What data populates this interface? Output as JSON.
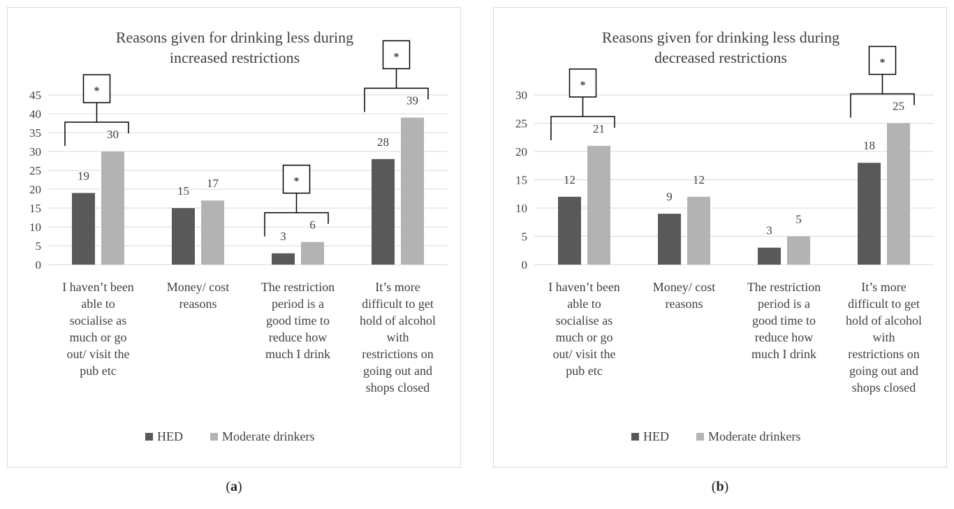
{
  "chart_data": [
    {
      "type": "bar",
      "title": "Reasons given for drinking less during increased restrictions",
      "title_lines": [
        "Reasons given for drinking less during",
        "increased restrictions"
      ],
      "categories": [
        "I haven’t been able to socialise as much or go out/ visit the pub etc",
        "Money/ cost reasons",
        "The restriction period is a good time to reduce how much I drink",
        "It’s more difficult to get hold of alcohol with restrictions on going out and shops closed"
      ],
      "category_lines": [
        [
          "I haven’t been",
          "able to",
          "socialise as",
          "much or go",
          "out/ visit the",
          "pub etc"
        ],
        [
          "Money/ cost",
          "reasons"
        ],
        [
          "The restriction",
          "period is a",
          "good time to",
          "reduce how",
          "much I drink"
        ],
        [
          "It’s more",
          "difficult to get",
          "hold of alcohol",
          "with",
          "restrictions on",
          "going out and",
          "shops closed"
        ]
      ],
      "series": [
        {
          "name": "HED",
          "values": [
            19,
            15,
            3,
            28
          ]
        },
        {
          "name": "Moderate drinkers",
          "values": [
            30,
            17,
            6,
            39
          ]
        }
      ],
      "ylim": [
        0,
        45
      ],
      "yticks": [
        0,
        5,
        10,
        15,
        20,
        25,
        30,
        35,
        40,
        45
      ],
      "grid": true,
      "legend": "bottom",
      "significance_marker": "*",
      "significant_categories": [
        0,
        2,
        3
      ],
      "colors": {
        "HED": "#595959",
        "Moderate drinkers": "#b3b3b3"
      }
    },
    {
      "type": "bar",
      "title": "Reasons given for drinking less during decreased restrictions",
      "title_lines": [
        "Reasons given for drinking less during",
        "decreased restrictions"
      ],
      "categories": [
        "I haven’t been able to socialise as much or go out/ visit the pub etc",
        "Money/ cost reasons",
        "The restriction period is a good time to reduce how much I drink",
        "It’s more difficult to get hold of alcohol with restrictions on going out and shops closed"
      ],
      "category_lines": [
        [
          "I haven’t been",
          "able to",
          "socialise as",
          "much or go",
          "out/ visit the",
          "pub etc"
        ],
        [
          "Money/ cost",
          "reasons"
        ],
        [
          "The restriction",
          "period is a",
          "good time to",
          "reduce how",
          "much I drink"
        ],
        [
          "It’s more",
          "difficult to get",
          "hold of alcohol",
          "with",
          "restrictions on",
          "going out and",
          "shops closed"
        ]
      ],
      "series": [
        {
          "name": "HED",
          "values": [
            12,
            9,
            3,
            18
          ]
        },
        {
          "name": "Moderate drinkers",
          "values": [
            21,
            12,
            5,
            25
          ]
        }
      ],
      "ylim": [
        0,
        30
      ],
      "yticks": [
        0,
        5,
        10,
        15,
        20,
        25,
        30
      ],
      "grid": true,
      "legend": "bottom",
      "significance_marker": "*",
      "significant_categories": [
        0,
        3
      ],
      "colors": {
        "HED": "#595959",
        "Moderate drinkers": "#b3b3b3"
      }
    }
  ],
  "captions": {
    "a_open": "(",
    "a_letter": "a",
    "a_close": ")",
    "b_open": "(",
    "b_letter": "b",
    "b_close": ")"
  }
}
